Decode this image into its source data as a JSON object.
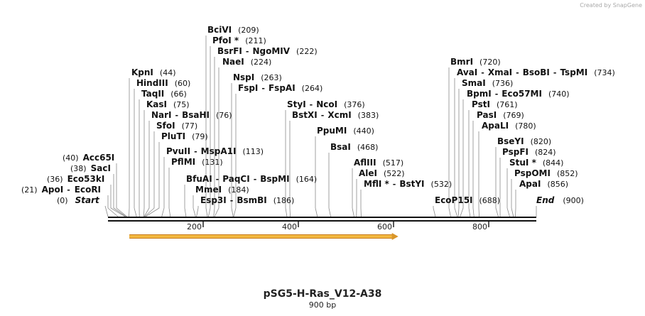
{
  "watermark": "Created by SnapGene",
  "title": "pSG5-H-Ras_V12-A38",
  "length_label": "900 bp",
  "sequence_length": 900,
  "ruler_ticks": [
    "200",
    "400",
    "600",
    "800"
  ],
  "feature_arrow": {
    "start": 45,
    "end": 610,
    "color": "#f2b73f"
  },
  "sites": [
    {
      "pos_label": "(0)",
      "names": [
        "Start"
      ],
      "pos": 0,
      "italic": true
    },
    {
      "pos_label": "(21)",
      "names": [
        "ApoI",
        "EcoRI"
      ],
      "pos": 21
    },
    {
      "pos_label": "(36)",
      "names": [
        "Eco53kI"
      ],
      "pos": 36
    },
    {
      "pos_label": "(38)",
      "names": [
        "SacI"
      ],
      "pos": 38
    },
    {
      "pos_label": "(40)",
      "names": [
        "Acc65I"
      ],
      "pos": 40
    },
    {
      "pos_label": "(44)",
      "names": [
        "KpnI"
      ],
      "pos": 44
    },
    {
      "pos_label": "(60)",
      "names": [
        "HindIII"
      ],
      "pos": 60
    },
    {
      "pos_label": "(66)",
      "names": [
        "TaqII"
      ],
      "pos": 66
    },
    {
      "pos_label": "(75)",
      "names": [
        "KasI"
      ],
      "pos": 75
    },
    {
      "pos_label": "(76)",
      "names": [
        "NarI",
        "BsaHI"
      ],
      "pos": 76
    },
    {
      "pos_label": "(77)",
      "names": [
        "SfoI"
      ],
      "pos": 77
    },
    {
      "pos_label": "(79)",
      "names": [
        "PluTI"
      ],
      "pos": 79
    },
    {
      "pos_label": "(113)",
      "names": [
        "PvuII",
        "MspA1I"
      ],
      "pos": 113
    },
    {
      "pos_label": "(131)",
      "names": [
        "PflMI"
      ],
      "pos": 131
    },
    {
      "pos_label": "(164)",
      "names": [
        "BfuAI",
        "PaqCI",
        "BspMI"
      ],
      "pos": 164
    },
    {
      "pos_label": "(184)",
      "names": [
        "MmeI"
      ],
      "pos": 184
    },
    {
      "pos_label": "(186)",
      "names": [
        "Esp3I",
        "BsmBI"
      ],
      "pos": 186
    },
    {
      "pos_label": "(209)",
      "names": [
        "BciVI"
      ],
      "pos": 209
    },
    {
      "pos_label": "(211)",
      "names": [
        "PfoI *"
      ],
      "pos": 211
    },
    {
      "pos_label": "(222)",
      "names": [
        "BsrFI",
        "NgoMIV"
      ],
      "pos": 222
    },
    {
      "pos_label": "(224)",
      "names": [
        "NaeI"
      ],
      "pos": 224
    },
    {
      "pos_label": "(263)",
      "names": [
        "NspI"
      ],
      "pos": 263
    },
    {
      "pos_label": "(264)",
      "names": [
        "FspI",
        "FspAI"
      ],
      "pos": 264
    },
    {
      "pos_label": "(376)",
      "names": [
        "StyI",
        "NcoI"
      ],
      "pos": 376
    },
    {
      "pos_label": "(383)",
      "names": [
        "BstXI",
        "XcmI"
      ],
      "pos": 383
    },
    {
      "pos_label": "(440)",
      "names": [
        "PpuMI"
      ],
      "pos": 440
    },
    {
      "pos_label": "(468)",
      "names": [
        "BsaI"
      ],
      "pos": 468
    },
    {
      "pos_label": "(517)",
      "names": [
        "AflIII"
      ],
      "pos": 517
    },
    {
      "pos_label": "(522)",
      "names": [
        "AleI"
      ],
      "pos": 522
    },
    {
      "pos_label": "(532)",
      "names": [
        "MflI *",
        "BstYI"
      ],
      "pos": 532
    },
    {
      "pos_label": "(688)",
      "names": [
        "EcoP15I"
      ],
      "pos": 688
    },
    {
      "pos_label": "(720)",
      "names": [
        "BmrI"
      ],
      "pos": 720
    },
    {
      "pos_label": "(734)",
      "names": [
        "AvaI",
        "XmaI",
        "BsoBI",
        "TspMI"
      ],
      "pos": 734
    },
    {
      "pos_label": "(736)",
      "names": [
        "SmaI"
      ],
      "pos": 736
    },
    {
      "pos_label": "(740)",
      "names": [
        "BpmI",
        "Eco57MI"
      ],
      "pos": 740
    },
    {
      "pos_label": "(761)",
      "names": [
        "PstI"
      ],
      "pos": 761
    },
    {
      "pos_label": "(769)",
      "names": [
        "PasI"
      ],
      "pos": 769
    },
    {
      "pos_label": "(780)",
      "names": [
        "ApaLI"
      ],
      "pos": 780
    },
    {
      "pos_label": "(820)",
      "names": [
        "BseYI"
      ],
      "pos": 820
    },
    {
      "pos_label": "(824)",
      "names": [
        "PspFI"
      ],
      "pos": 824
    },
    {
      "pos_label": "(844)",
      "names": [
        "StuI *"
      ],
      "pos": 844
    },
    {
      "pos_label": "(852)",
      "names": [
        "PspOMI"
      ],
      "pos": 852
    },
    {
      "pos_label": "(856)",
      "names": [
        "ApaI"
      ],
      "pos": 856
    },
    {
      "pos_label": "(900)",
      "names": [
        "End"
      ],
      "pos": 900,
      "italic": true
    }
  ]
}
